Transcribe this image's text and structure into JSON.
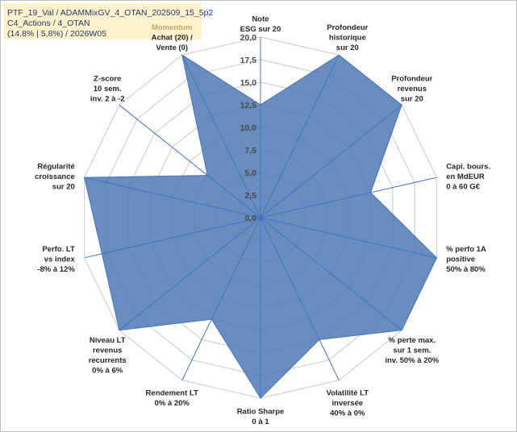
{
  "header": {
    "line1": "PTF_19_Val / ADAMMixGV_4_OTAN_202509_15_5p2",
    "line2": "C4_Actions / 4_OTAN",
    "line3": "(14,8% | 5,8%) / 2026W05"
  },
  "chart_data": {
    "type": "radar",
    "scale": {
      "min": 0,
      "max": 20,
      "step": 2.5
    },
    "tick_labels": [
      "0,0",
      "2,5",
      "5,0",
      "7,5",
      "10,0",
      "12,5",
      "15,0",
      "17,5",
      "20,0"
    ],
    "axes": [
      {
        "label": [
          "Note",
          "ESG sur 20"
        ],
        "value": 12.5,
        "highlight": false
      },
      {
        "label": [
          "Profondeur",
          "historique",
          "sur 20"
        ],
        "value": 20,
        "highlight": false
      },
      {
        "label": [
          "Profondeur",
          "revenus",
          "sur 20"
        ],
        "value": 20,
        "highlight": false
      },
      {
        "label": [
          "Capi. bours.",
          "en MdEUR",
          "0 à 60 G€"
        ],
        "value": 12.5,
        "highlight": false
      },
      {
        "label": [
          "% perfo 1A",
          "positive",
          "50% à 80%"
        ],
        "value": 20,
        "highlight": false
      },
      {
        "label": [
          "% perte max.",
          "sur 1 sem.",
          "inv. 50% à 20%"
        ],
        "value": 20,
        "highlight": false
      },
      {
        "label": [
          "Volatilité LT",
          "inversée",
          "40% à 0%"
        ],
        "value": 15,
        "highlight": false
      },
      {
        "label": [
          "Ratio Sharpe",
          "0 à 1"
        ],
        "value": 20,
        "highlight": false
      },
      {
        "label": [
          "Rendement LT",
          "0% à 20%"
        ],
        "value": 12.5,
        "highlight": false
      },
      {
        "label": [
          "Niveau LT",
          "revenus",
          "recurrents",
          "0% à 6%"
        ],
        "value": 20,
        "highlight": false
      },
      {
        "label": [
          "Perfo. LT",
          "vs index",
          "-8% à 12%"
        ],
        "value": 18,
        "highlight": false
      },
      {
        "label": [
          "Régularité",
          "croissance",
          "sur 20"
        ],
        "value": 20,
        "highlight": false
      },
      {
        "label": [
          "Z-score",
          "10 sem.",
          "inv. 2 à -2"
        ],
        "value": 7.5,
        "highlight": false
      },
      {
        "label": [
          "Momentum",
          "Achat (20) /",
          "Vente (0)"
        ],
        "value": 20,
        "highlight": true
      }
    ],
    "series": [
      {
        "fill_color": "#4f79b0",
        "stroke_color": "#4472c4"
      }
    ],
    "grid": true
  }
}
